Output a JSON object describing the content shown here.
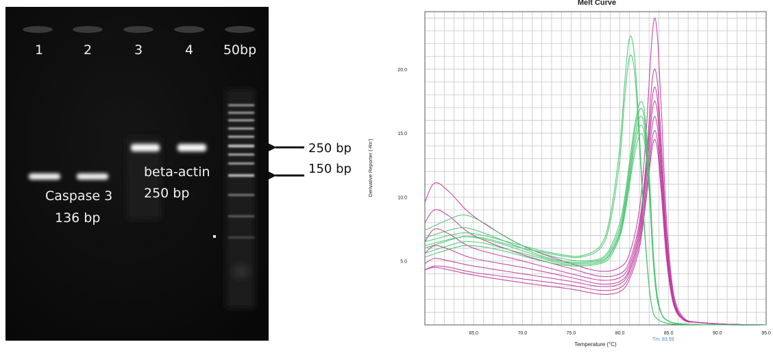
{
  "gel": {
    "lane_labels": [
      "1",
      "2",
      "3",
      "4",
      "50bp"
    ],
    "caspase_label_line1": "Caspase 3",
    "caspase_label_line2": "136 bp",
    "actin_label_line1": "beta-actin",
    "actin_label_line2": "250 bp",
    "markers": [
      "250 bp",
      "150 bp"
    ],
    "colors": {
      "gel_background": "#0e0e0e",
      "band": "#f4f4f4",
      "label": "#f2f2f2"
    }
  },
  "chart_data": {
    "type": "line",
    "title": "Melt Curve",
    "xlabel": "Temperature (°C)",
    "ylabel": "Derivative Reporter (-Rn')",
    "xlim": [
      60.0,
      95.0
    ],
    "ylim": [
      0.0,
      24.5
    ],
    "x_ticks": [
      65.0,
      70.0,
      75.0,
      80.0,
      85.0,
      90.0,
      95.0
    ],
    "x_tick_labels": [
      "65.0",
      "70.0",
      "75.0",
      "80.0",
      "85.0",
      "90.0",
      "95.0"
    ],
    "y_ticks": [
      5.0,
      10.0,
      15.0,
      20.0
    ],
    "y_tick_labels": [
      "5.0",
      "10.0",
      "15.0",
      "20.0"
    ],
    "grid": true,
    "annotation": "Tm: 83.59",
    "colors": {
      "magenta": "#c0369e",
      "green": "#45c46d",
      "grid": "#c6c6c6",
      "annotation": "#4b86c8"
    },
    "series_groups": [
      {
        "color_key": "magenta",
        "x": [
          60.0,
          61.0,
          62.5,
          65.0,
          70.0,
          75.0,
          78.0,
          80.0,
          81.0,
          82.0,
          82.6,
          83.0,
          83.3,
          83.59,
          83.9,
          84.3,
          84.8,
          85.5,
          86.5,
          88.0,
          91.0,
          95.0
        ],
        "curves": [
          {
            "peak": 24.0,
            "y": [
              9.6,
              11.1,
              10.4,
              8.5,
              6.2,
              4.8,
              4.2,
              4.5,
              5.6,
              9.0,
              14.0,
              19.0,
              22.5,
              24.0,
              22.0,
              16.0,
              8.0,
              2.5,
              0.6,
              0.2,
              0.05,
              0.0
            ]
          },
          {
            "peak": 20.0,
            "y": [
              8.0,
              9.0,
              8.5,
              7.0,
              5.5,
              4.4,
              3.8,
              4.0,
              5.0,
              8.0,
              12.0,
              16.0,
              19.0,
              20.0,
              18.5,
              13.5,
              7.0,
              2.2,
              0.5,
              0.2,
              0.05,
              0.0
            ]
          },
          {
            "peak": 18.6,
            "y": [
              6.5,
              7.5,
              7.1,
              6.0,
              5.0,
              4.0,
              3.5,
              3.7,
              4.7,
              7.6,
              11.5,
              15.0,
              17.6,
              18.6,
              17.2,
              12.5,
              6.5,
              2.0,
              0.5,
              0.2,
              0.05,
              0.0
            ]
          },
          {
            "peak": 17.5,
            "y": [
              5.6,
              6.2,
              5.9,
              5.2,
              4.5,
              3.7,
              3.2,
              3.4,
              4.4,
              7.2,
              11.0,
              14.2,
              16.6,
              17.5,
              16.2,
              11.8,
              6.0,
              1.9,
              0.5,
              0.2,
              0.05,
              0.0
            ]
          },
          {
            "peak": 16.3,
            "y": [
              4.8,
              5.2,
              5.0,
              4.6,
              4.0,
              3.4,
              3.0,
              3.2,
              4.2,
              6.8,
              10.3,
              13.3,
              15.5,
              16.3,
              15.1,
              11.0,
              5.6,
              1.8,
              0.4,
              0.2,
              0.05,
              0.0
            ]
          },
          {
            "peak": 15.2,
            "y": [
              4.3,
              4.6,
              4.5,
              4.1,
              3.6,
              3.1,
              2.7,
              2.9,
              3.9,
              6.4,
              9.7,
              12.4,
              14.5,
              15.2,
              14.1,
              10.3,
              5.3,
              1.7,
              0.4,
              0.2,
              0.05,
              0.0
            ]
          },
          {
            "peak": 14.5,
            "y": [
              4.3,
              4.5,
              4.3,
              3.9,
              3.3,
              2.8,
              2.4,
              2.6,
              3.6,
              6.0,
              9.2,
              11.9,
              13.8,
              14.5,
              13.4,
              9.8,
              5.0,
              1.6,
              0.4,
              0.2,
              0.05,
              0.0
            ]
          }
        ]
      },
      {
        "color_key": "green",
        "x": [
          60.0,
          62.0,
          64.0,
          66.0,
          68.0,
          70.0,
          72.0,
          74.0,
          76.0,
          78.0,
          79.0,
          80.0,
          80.5,
          81.0,
          81.5,
          82.0,
          82.5,
          83.0,
          83.4,
          83.8,
          84.3,
          85.0,
          86.0,
          88.0,
          91.0,
          95.0
        ],
        "curves": [
          {
            "peak": 22.5,
            "y": [
              6.5,
              6.9,
              7.2,
              7.0,
              6.6,
              6.2,
              5.8,
              5.5,
              5.4,
              6.2,
              8.5,
              14.0,
              19.0,
              22.5,
              21.0,
              15.0,
              8.0,
              3.0,
              1.0,
              0.5,
              0.25,
              0.1,
              0.05,
              0.02,
              0.0,
              0.0
            ]
          },
          {
            "peak": 21.0,
            "y": [
              6.2,
              6.6,
              6.9,
              6.8,
              6.4,
              6.0,
              5.7,
              5.4,
              5.3,
              6.0,
              8.0,
              13.0,
              17.8,
              21.0,
              19.8,
              14.2,
              7.6,
              2.9,
              1.0,
              0.5,
              0.25,
              0.1,
              0.05,
              0.02,
              0.0,
              0.0
            ]
          },
          {
            "peak": 17.3,
            "y": [
              7.4,
              8.1,
              8.6,
              8.0,
              7.0,
              6.2,
              5.6,
              5.2,
              5.0,
              5.2,
              6.0,
              8.0,
              10.0,
              12.8,
              15.5,
              17.3,
              16.8,
              12.0,
              6.0,
              2.5,
              0.8,
              0.3,
              0.1,
              0.03,
              0.0,
              0.0
            ]
          },
          {
            "peak": 16.8,
            "y": [
              6.8,
              7.3,
              7.6,
              7.2,
              6.6,
              6.0,
              5.4,
              5.0,
              4.9,
              5.1,
              5.8,
              7.6,
              9.6,
              12.3,
              15.0,
              16.8,
              16.2,
              11.6,
              5.8,
              2.4,
              0.8,
              0.3,
              0.1,
              0.03,
              0.0,
              0.0
            ]
          },
          {
            "peak": 16.2,
            "y": [
              6.0,
              6.5,
              6.9,
              6.7,
              6.3,
              5.8,
              5.3,
              4.9,
              4.8,
              5.0,
              5.6,
              7.3,
              9.2,
              11.8,
              14.4,
              16.2,
              15.6,
              11.2,
              5.6,
              2.3,
              0.8,
              0.3,
              0.1,
              0.03,
              0.0,
              0.0
            ]
          },
          {
            "peak": 15.5,
            "y": [
              5.6,
              6.1,
              6.5,
              6.4,
              6.0,
              5.6,
              5.2,
              4.8,
              4.7,
              4.9,
              5.5,
              7.1,
              8.9,
              11.4,
              13.9,
              15.5,
              15.0,
              10.8,
              5.4,
              2.2,
              0.8,
              0.3,
              0.1,
              0.03,
              0.0,
              0.0
            ]
          },
          {
            "peak": 14.8,
            "y": [
              5.3,
              5.8,
              6.2,
              6.1,
              5.8,
              5.4,
              5.0,
              4.7,
              4.6,
              4.8,
              5.3,
              6.9,
              8.6,
              11.0,
              13.3,
              14.8,
              14.4,
              10.4,
              5.2,
              2.1,
              0.8,
              0.3,
              0.1,
              0.03,
              0.0,
              0.0
            ]
          }
        ]
      }
    ]
  }
}
